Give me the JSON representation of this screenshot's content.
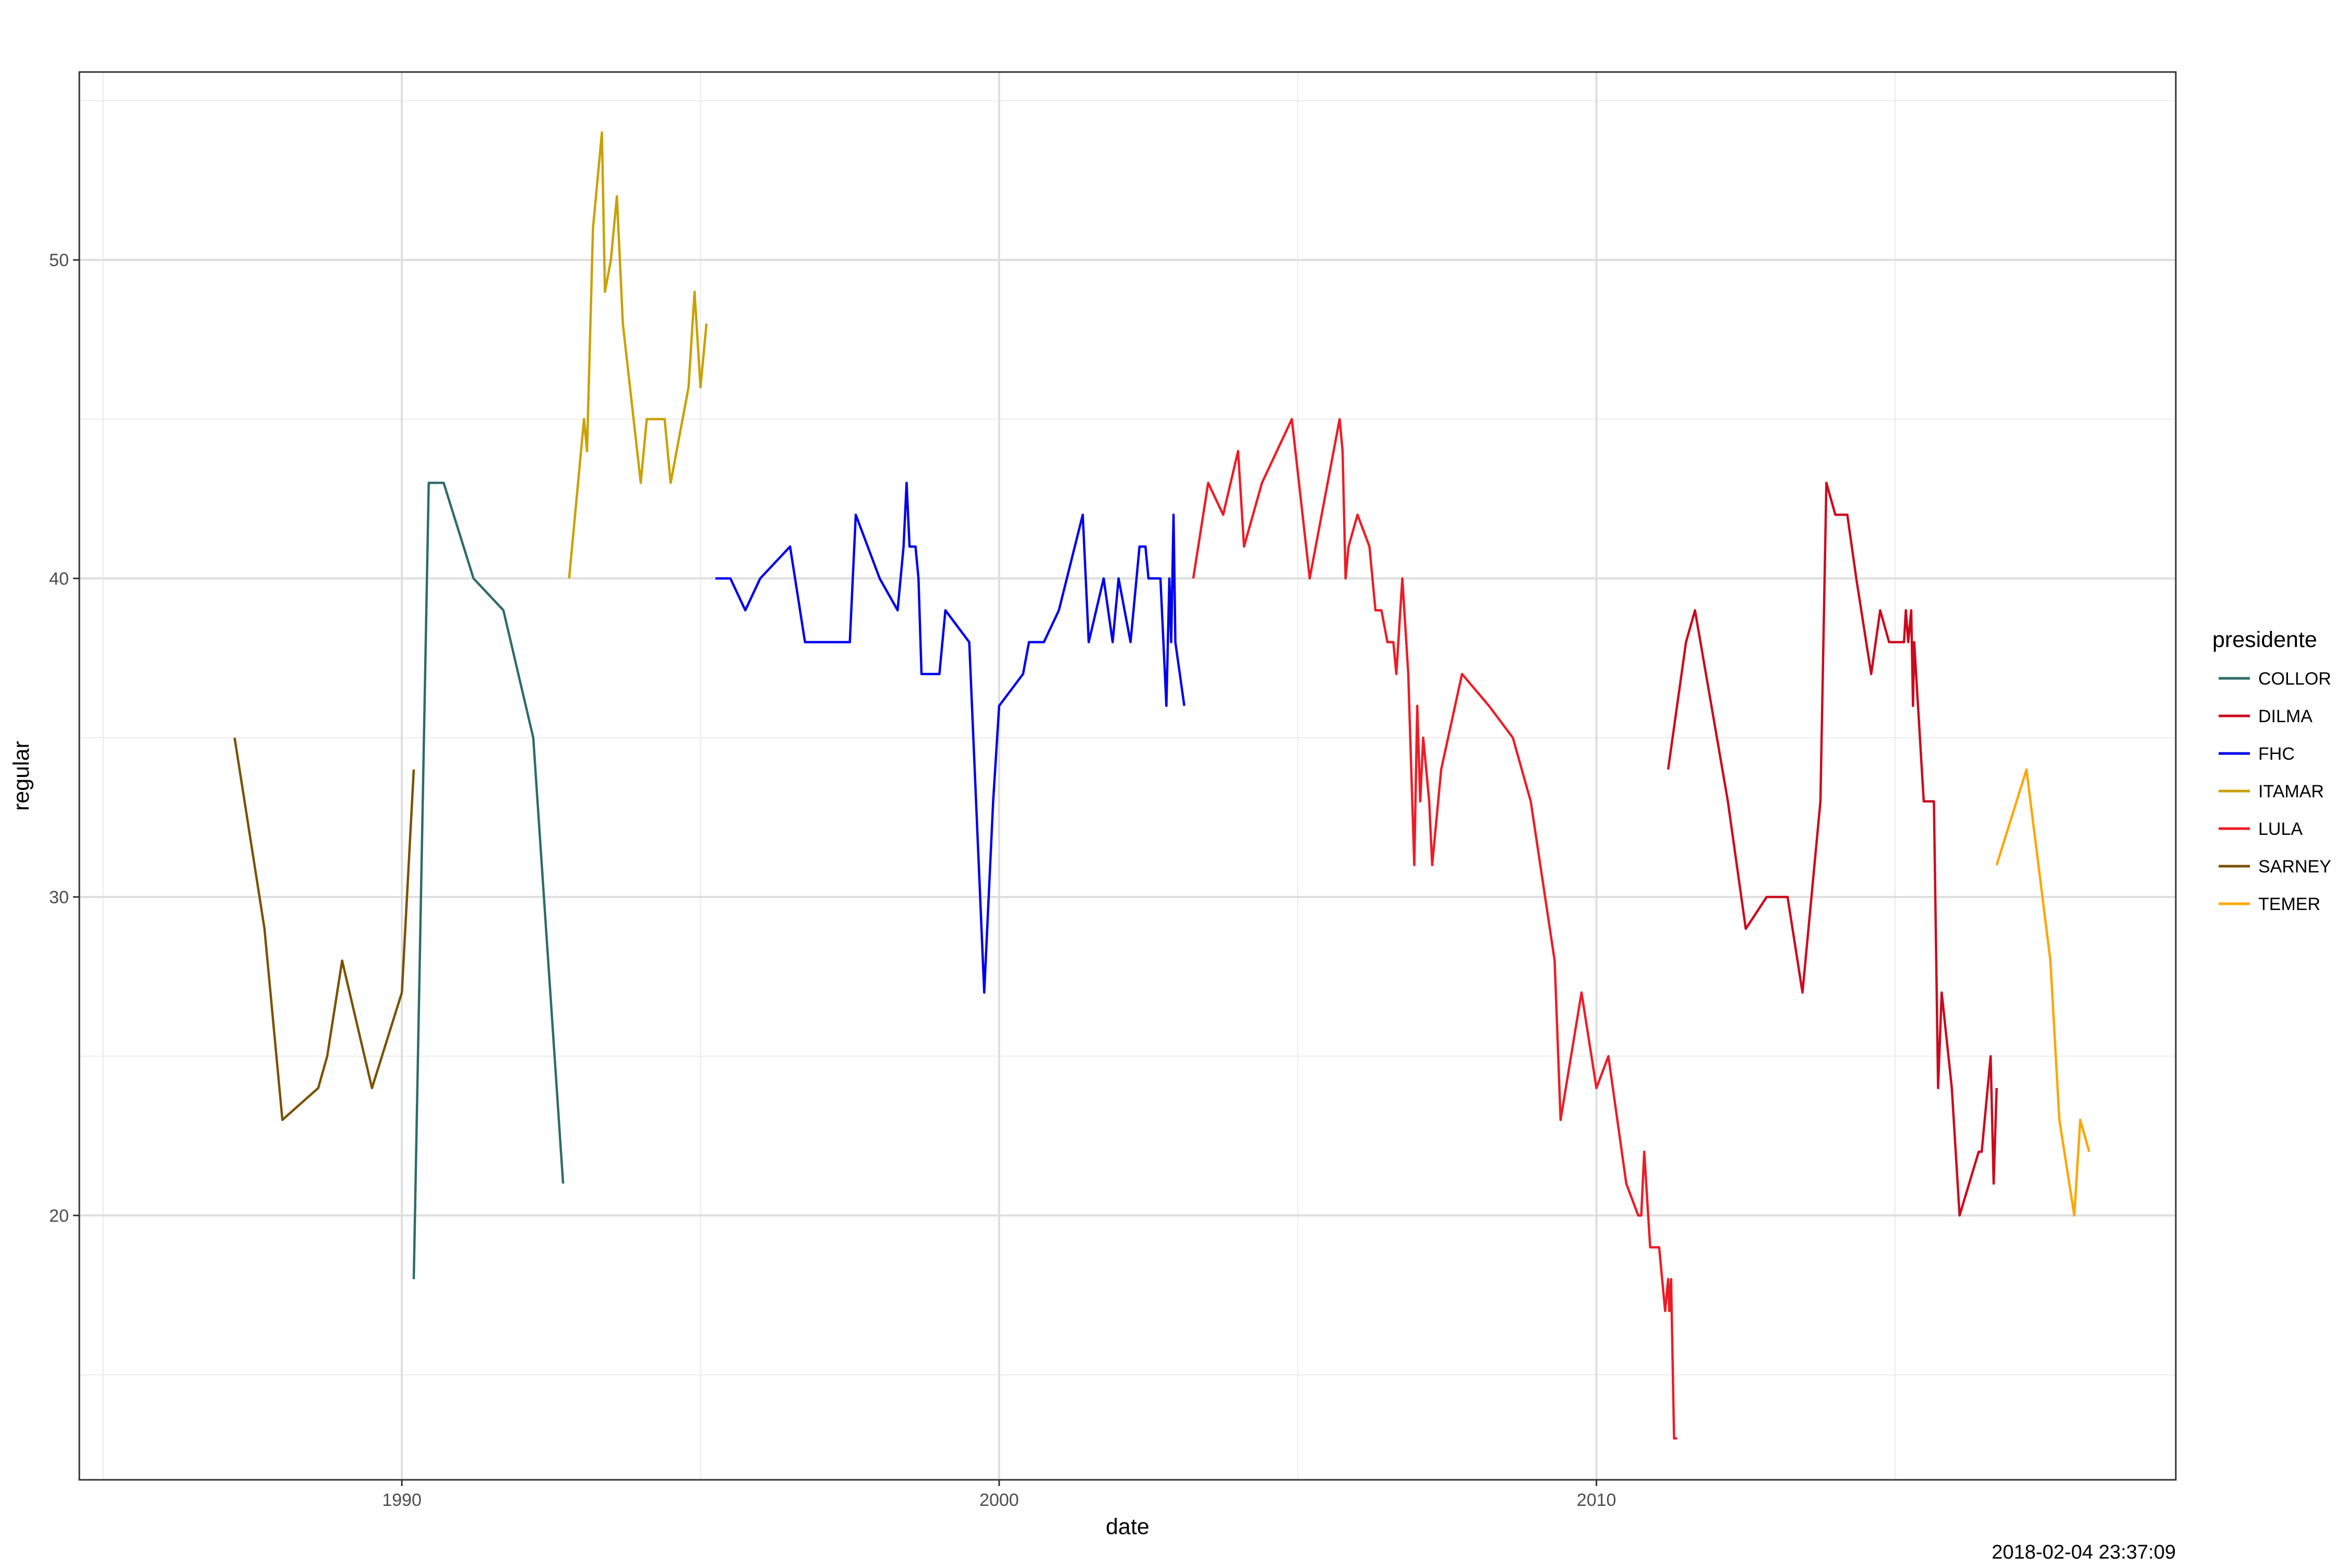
{
  "chart_data": {
    "type": "line",
    "xlabel": "date",
    "ylabel": "regular",
    "x_ticks": [
      1990,
      2000,
      2010
    ],
    "y_ticks": [
      20,
      30,
      40,
      50
    ],
    "xlim": [
      1984.6,
      2019.7
    ],
    "ylim": [
      11.7,
      55.9
    ],
    "grid": true,
    "legend": {
      "title": "presidente",
      "placement": "right"
    },
    "caption": "2018-02-04 23:37:09",
    "series": [
      {
        "name": "COLLOR",
        "color": "#2f6b6b",
        "points": [
          [
            1990.2,
            18
          ],
          [
            1990.45,
            43
          ],
          [
            1990.7,
            43
          ],
          [
            1991.2,
            40
          ],
          [
            1991.7,
            39
          ],
          [
            1992.2,
            35
          ],
          [
            1992.7,
            21
          ]
        ]
      },
      {
        "name": "DILMA",
        "color": "#cc0a1e",
        "points": [
          [
            2011.2,
            34
          ],
          [
            2011.5,
            38
          ],
          [
            2011.65,
            39
          ],
          [
            2012.2,
            33
          ],
          [
            2012.5,
            29
          ],
          [
            2012.85,
            30
          ],
          [
            2013.2,
            30
          ],
          [
            2013.45,
            27
          ],
          [
            2013.75,
            33
          ],
          [
            2013.85,
            43
          ],
          [
            2014.0,
            42
          ],
          [
            2014.2,
            42
          ],
          [
            2014.35,
            40
          ],
          [
            2014.6,
            37
          ],
          [
            2014.75,
            39
          ],
          [
            2014.9,
            38
          ],
          [
            2015.15,
            38
          ],
          [
            2015.18,
            39
          ],
          [
            2015.22,
            38
          ],
          [
            2015.27,
            39
          ],
          [
            2015.3,
            36
          ],
          [
            2015.32,
            38
          ],
          [
            2015.48,
            33
          ],
          [
            2015.65,
            33
          ],
          [
            2015.72,
            24
          ],
          [
            2015.78,
            27
          ],
          [
            2015.95,
            24
          ],
          [
            2016.08,
            20
          ],
          [
            2016.4,
            22
          ],
          [
            2016.45,
            22
          ],
          [
            2016.6,
            25
          ],
          [
            2016.65,
            21
          ],
          [
            2016.7,
            24
          ]
        ]
      },
      {
        "name": "FHC",
        "color": "#0000ee",
        "points": [
          [
            1995.25,
            40
          ],
          [
            1995.5,
            40
          ],
          [
            1995.75,
            39
          ],
          [
            1996.0,
            40
          ],
          [
            1996.5,
            41
          ],
          [
            1996.75,
            38
          ],
          [
            1997.0,
            38
          ],
          [
            1997.3,
            38
          ],
          [
            1997.5,
            38
          ],
          [
            1997.6,
            42
          ],
          [
            1998.0,
            40
          ],
          [
            1998.3,
            39
          ],
          [
            1998.4,
            41
          ],
          [
            1998.45,
            43
          ],
          [
            1998.5,
            41
          ],
          [
            1998.6,
            41
          ],
          [
            1998.65,
            40
          ],
          [
            1998.7,
            37
          ],
          [
            1999.0,
            37
          ],
          [
            1999.1,
            39
          ],
          [
            1999.5,
            38
          ],
          [
            1999.75,
            27
          ],
          [
            1999.9,
            33
          ],
          [
            2000.0,
            36
          ],
          [
            2000.4,
            37
          ],
          [
            2000.5,
            38
          ],
          [
            2000.75,
            38
          ],
          [
            2001.0,
            39
          ],
          [
            2001.4,
            42
          ],
          [
            2001.5,
            38
          ],
          [
            2001.75,
            40
          ],
          [
            2001.9,
            38
          ],
          [
            2002.0,
            40
          ],
          [
            2002.2,
            38
          ],
          [
            2002.35,
            41
          ],
          [
            2002.45,
            41
          ],
          [
            2002.5,
            40
          ],
          [
            2002.7,
            40
          ],
          [
            2002.8,
            36
          ],
          [
            2002.85,
            40
          ],
          [
            2002.88,
            38
          ],
          [
            2002.92,
            42
          ],
          [
            2002.95,
            38
          ],
          [
            2003.1,
            36
          ]
        ]
      },
      {
        "name": "ITAMAR",
        "color": "#c9a100",
        "points": [
          [
            1992.8,
            40
          ],
          [
            1993.05,
            45
          ],
          [
            1993.1,
            44
          ],
          [
            1993.2,
            51
          ],
          [
            1993.35,
            54
          ],
          [
            1993.4,
            49
          ],
          [
            1993.5,
            50
          ],
          [
            1993.6,
            52
          ],
          [
            1993.7,
            48
          ],
          [
            1994.0,
            43
          ],
          [
            1994.1,
            45
          ],
          [
            1994.3,
            45
          ],
          [
            1994.4,
            45
          ],
          [
            1994.5,
            43
          ],
          [
            1994.8,
            46
          ],
          [
            1994.9,
            49
          ],
          [
            1995.0,
            46
          ],
          [
            1995.1,
            48
          ]
        ]
      },
      {
        "name": "LULA",
        "color": "#ee1c25",
        "points": [
          [
            2003.25,
            40
          ],
          [
            2003.5,
            43
          ],
          [
            2003.75,
            42
          ],
          [
            2004.0,
            44
          ],
          [
            2004.1,
            41
          ],
          [
            2004.4,
            43
          ],
          [
            2004.9,
            45
          ],
          [
            2005.2,
            40
          ],
          [
            2005.7,
            45
          ],
          [
            2005.75,
            44
          ],
          [
            2005.8,
            40
          ],
          [
            2005.85,
            41
          ],
          [
            2006.0,
            42
          ],
          [
            2006.2,
            41
          ],
          [
            2006.3,
            39
          ],
          [
            2006.4,
            39
          ],
          [
            2006.5,
            38
          ],
          [
            2006.6,
            38
          ],
          [
            2006.65,
            37
          ],
          [
            2006.75,
            40
          ],
          [
            2006.85,
            37
          ],
          [
            2006.9,
            34
          ],
          [
            2006.95,
            31
          ],
          [
            2007.0,
            36
          ],
          [
            2007.05,
            33
          ],
          [
            2007.1,
            35
          ],
          [
            2007.15,
            34
          ],
          [
            2007.2,
            33
          ],
          [
            2007.25,
            31
          ],
          [
            2007.4,
            34
          ],
          [
            2007.75,
            37
          ],
          [
            2008.2,
            36
          ],
          [
            2008.6,
            35
          ],
          [
            2008.9,
            33
          ],
          [
            2009.3,
            28
          ],
          [
            2009.4,
            23
          ],
          [
            2009.75,
            27
          ],
          [
            2010.0,
            24
          ],
          [
            2010.2,
            25
          ],
          [
            2010.5,
            21
          ],
          [
            2010.7,
            20
          ],
          [
            2010.75,
            20
          ],
          [
            2010.8,
            22
          ],
          [
            2010.9,
            19
          ],
          [
            2011.05,
            19
          ],
          [
            2011.15,
            17
          ],
          [
            2011.2,
            18
          ],
          [
            2011.22,
            17
          ],
          [
            2011.25,
            18
          ],
          [
            2011.28,
            15
          ],
          [
            2011.3,
            13
          ],
          [
            2011.35,
            13
          ]
        ]
      },
      {
        "name": "SARNEY",
        "color": "#7a5200",
        "points": [
          [
            1987.2,
            35
          ],
          [
            1987.7,
            29
          ],
          [
            1988.0,
            23
          ],
          [
            1988.6,
            24
          ],
          [
            1988.75,
            25
          ],
          [
            1989.0,
            28
          ],
          [
            1989.5,
            24
          ],
          [
            1990.0,
            27
          ],
          [
            1990.2,
            34
          ]
        ]
      },
      {
        "name": "TEMER",
        "color": "#ffa500",
        "points": [
          [
            2016.7,
            31
          ],
          [
            2017.2,
            34
          ],
          [
            2017.6,
            28
          ],
          [
            2017.75,
            23
          ],
          [
            2018.0,
            20
          ],
          [
            2018.1,
            23
          ],
          [
            2018.25,
            22
          ]
        ]
      }
    ]
  }
}
